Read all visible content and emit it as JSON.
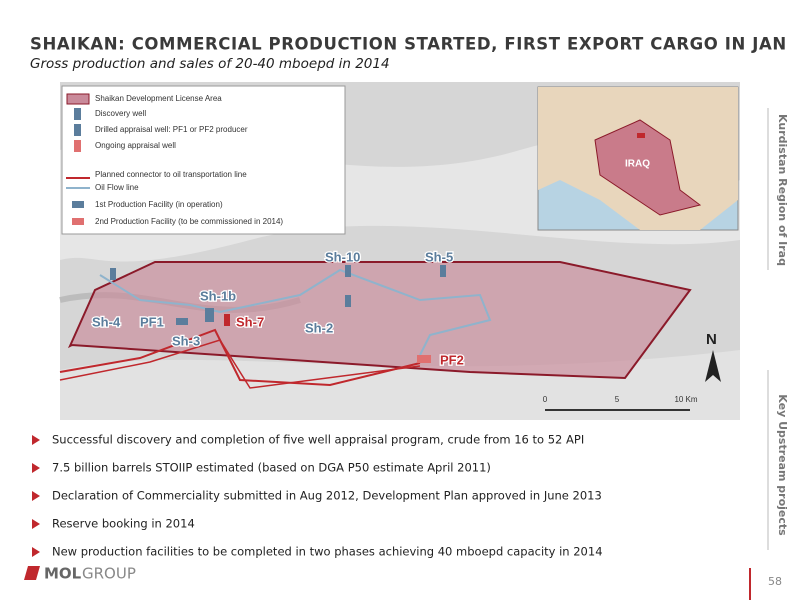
{
  "header": {
    "title": "SHAIKAN: COMMERCIAL PRODUCTION STARTED, FIRST EXPORT CARGO IN JAN",
    "subtitle": "Gross production and sales of 20-40 mboepd in 2014"
  },
  "map": {
    "legend": [
      "Shaikan Development License Area",
      "Discovery well",
      "Drilled appraisal well: PF1 or PF2 producer",
      "Ongoing appraisal well",
      "Planned connector to oil transportation line",
      "Oil Flow line",
      "1st Production Facility (in operation)",
      "2nd Production Facility (to be commissioned in 2014)"
    ],
    "inset_label": "IRAQ",
    "labels": [
      "Sh-4",
      "PF1",
      "Sh-1b",
      "Sh-3",
      "Sh-7",
      "Sh-10",
      "Sh-2",
      "Sh-5",
      "PF2"
    ],
    "north": "N",
    "scale": [
      "0",
      "5",
      "10 Km"
    ]
  },
  "bullets": [
    "Successful discovery and completion of five well appraisal program, crude from 16 to 52 API",
    "7.5 billion barrels STOIIP estimated (based on DGA P50 estimate April 2011)",
    "Declaration of Commerciality submitted in Aug 2012, Development Plan approved in June 2013",
    "Reserve booking in 2014",
    "New production facilities to be completed in two phases achieving 40 mboepd capacity in 2014"
  ],
  "side_tabs": [
    "Kurdistan Region of Iraq",
    "Key Upstream projects"
  ],
  "footer": {
    "logo": [
      "MOL",
      "GROUP"
    ],
    "page": "58"
  }
}
